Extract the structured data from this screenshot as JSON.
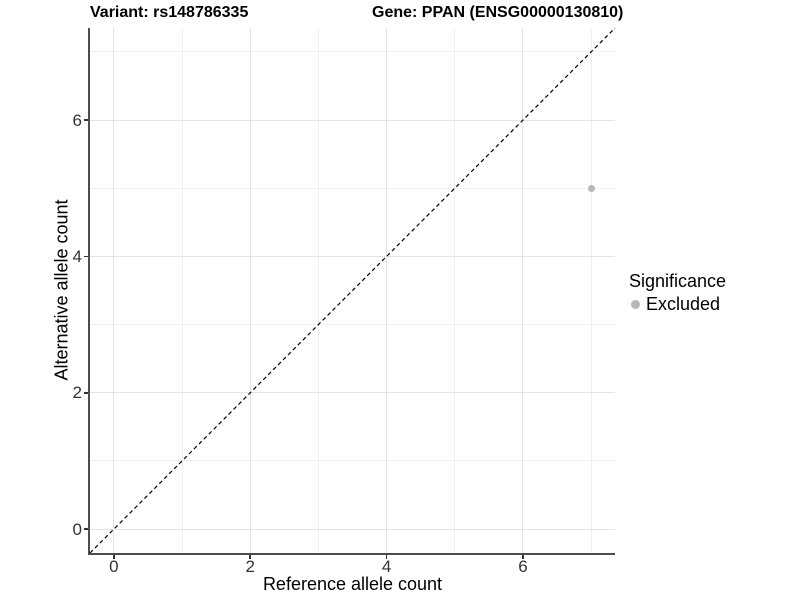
{
  "header": {
    "title_variant": "Variant: rs148786335",
    "title_gene": "Gene: PPAN (ENSG00000130810)"
  },
  "chart_data": {
    "type": "scatter",
    "xlabel": "Reference allele count",
    "ylabel": "Alternative allele count",
    "xlim": [
      -0.35,
      7.35
    ],
    "ylim": [
      -0.35,
      7.35
    ],
    "x_ticks": [
      0,
      2,
      4,
      6
    ],
    "y_ticks": [
      0,
      2,
      4,
      6
    ],
    "x_minor_ticks": [
      1,
      3,
      5,
      7
    ],
    "y_minor_ticks": [
      1,
      3,
      5,
      7
    ],
    "grid": true,
    "points": [
      {
        "x": 7,
        "y": 5,
        "series": "Excluded"
      }
    ],
    "identity_line": {
      "slope": 1,
      "intercept": 0,
      "style": "dashed"
    },
    "legend": {
      "title": "Significance",
      "position": "right",
      "entries": [
        {
          "label": "Excluded",
          "color": "#b8b8b8"
        }
      ]
    }
  },
  "colors": {
    "background": "#ffffff",
    "grid_major": "#e3e3e3",
    "grid_minor": "#f0f0f0",
    "axis_line": "#4d4d4d",
    "tick_mark": "#333333",
    "tick_label": "#333333",
    "dashed_line": "#000000",
    "point": "#b8b8b8"
  }
}
